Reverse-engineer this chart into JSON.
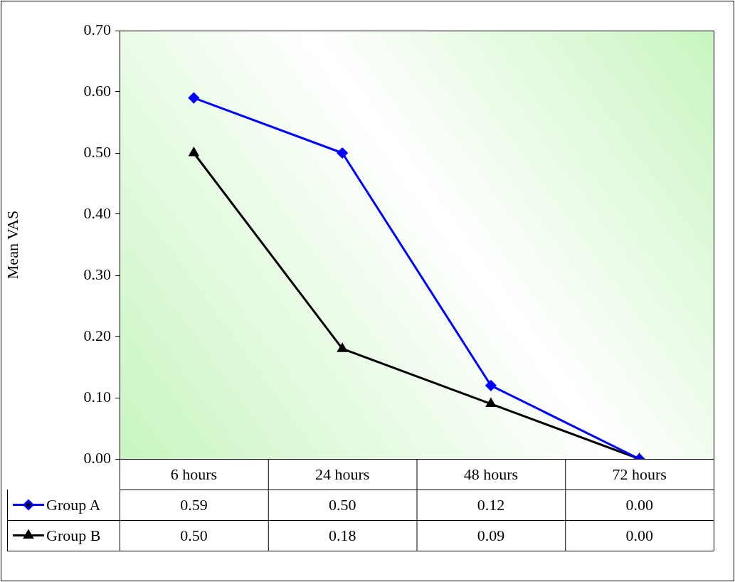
{
  "chart_data": {
    "type": "line",
    "ylabel": "Mean VAS",
    "categories": [
      "6 hours",
      "24 hours",
      "48 hours",
      "72 hours"
    ],
    "series": [
      {
        "name": "Group A",
        "color": "#0000ff",
        "marker": "diamond",
        "values": [
          0.59,
          0.5,
          0.12,
          0.0
        ],
        "value_labels": [
          "0.59",
          "0.50",
          "0.12",
          "0.00"
        ]
      },
      {
        "name": "Group B",
        "color": "#000000",
        "marker": "triangle",
        "values": [
          0.5,
          0.18,
          0.09,
          0.0
        ],
        "value_labels": [
          "0.50",
          "0.18",
          "0.09",
          "0.00"
        ]
      }
    ],
    "ylim": [
      0,
      0.7
    ],
    "yticks": [
      {
        "value": 0,
        "label": "0.00"
      },
      {
        "value": 0.1,
        "label": "0.10"
      },
      {
        "value": 0.2,
        "label": "0.20"
      },
      {
        "value": 0.3,
        "label": "0.30"
      },
      {
        "value": 0.4,
        "label": "0.40"
      },
      {
        "value": 0.5,
        "label": "0.50"
      },
      {
        "value": 0.6,
        "label": "0.60"
      },
      {
        "value": 0.7,
        "label": "0.70"
      }
    ],
    "legend": "bottom left"
  }
}
